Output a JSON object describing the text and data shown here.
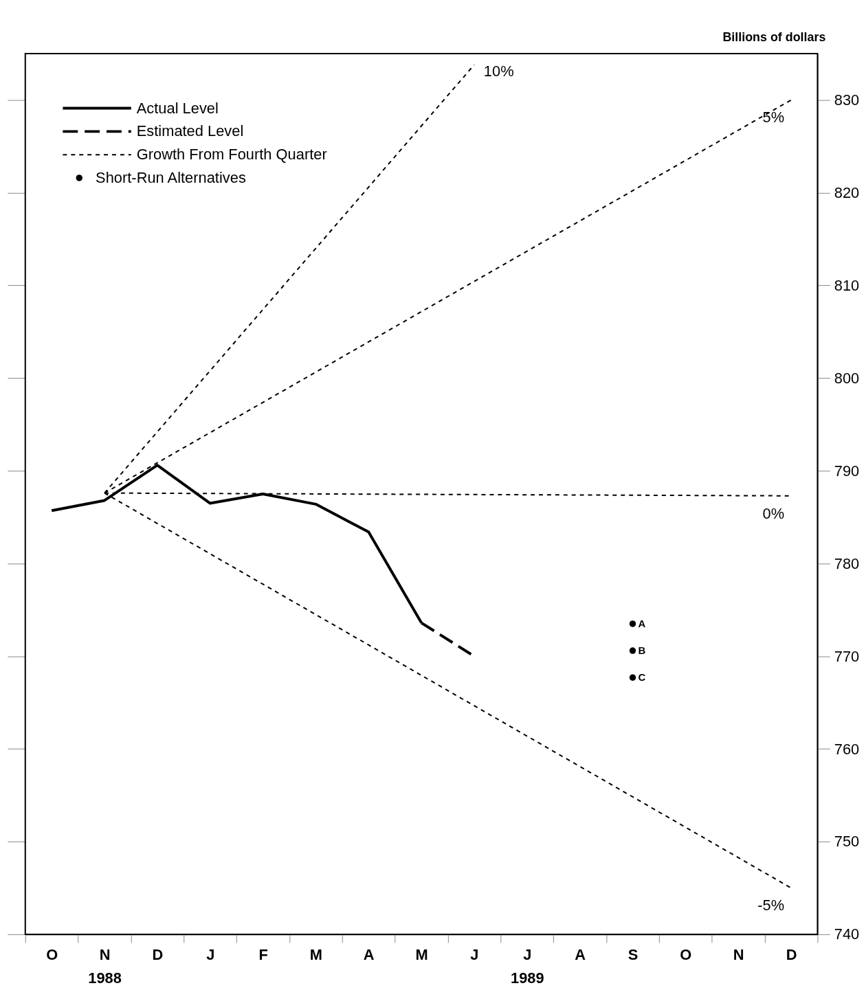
{
  "chart_data": {
    "type": "line",
    "ylabel": "Billions of dollars",
    "categories": [
      "O",
      "N\n1988",
      "D",
      "J",
      "F",
      "M",
      "A",
      "M",
      "J",
      "J\n1989",
      "A",
      "S",
      "O",
      "N",
      "D"
    ],
    "ylim": [
      740,
      835
    ],
    "yticks": [
      740,
      750,
      760,
      770,
      780,
      790,
      800,
      810,
      820,
      830
    ],
    "grid": false,
    "legend": "top left",
    "annotations": [
      "Growth From Fourth Quarter"
    ],
    "series": [
      {
        "name": "Actual Level",
        "color": "#000000",
        "line_style": "solid",
        "values": [
          785.7,
          786.8,
          790.6,
          786.5,
          787.5,
          786.4,
          783.4,
          773.6,
          null,
          null,
          null,
          null,
          null,
          null,
          null
        ]
      },
      {
        "name": "Estimated Level",
        "color": "#000000",
        "line_style": "dashed",
        "values": [
          null,
          null,
          null,
          null,
          null,
          null,
          null,
          773.6,
          770.0,
          null,
          null,
          null,
          null,
          null,
          null
        ]
      },
      {
        "name": "10%",
        "color": "#000000",
        "type": "line",
        "line_style": "dotted",
        "values": [
          null,
          787.6,
          null,
          null,
          null,
          null,
          null,
          null,
          833.8,
          null,
          null,
          null,
          null,
          null,
          null
        ]
      },
      {
        "name": "5%",
        "color": "#000000",
        "type": "line",
        "line_style": "dotted",
        "values": [
          null,
          787.6,
          null,
          null,
          null,
          null,
          null,
          null,
          null,
          null,
          null,
          null,
          null,
          null,
          830.0
        ]
      },
      {
        "name": "0%",
        "color": "#000000",
        "type": "line",
        "line_style": "dotted",
        "values": [
          null,
          787.6,
          null,
          null,
          null,
          null,
          null,
          null,
          null,
          null,
          null,
          null,
          null,
          null,
          787.3
        ]
      },
      {
        "name": "-5%",
        "color": "#000000",
        "type": "line",
        "line_style": "dotted",
        "values": [
          null,
          787.6,
          null,
          null,
          null,
          null,
          null,
          null,
          null,
          null,
          null,
          null,
          null,
          null,
          745.0
        ]
      },
      {
        "name": "Short-Run Alternatives",
        "color": "#000000",
        "type": "scatter",
        "marker": "circle",
        "x": [
          "S",
          "S",
          "S"
        ],
        "values": [
          773.5,
          770.6,
          767.7
        ],
        "value_labels": [
          "A",
          "B",
          "C"
        ]
      }
    ]
  }
}
